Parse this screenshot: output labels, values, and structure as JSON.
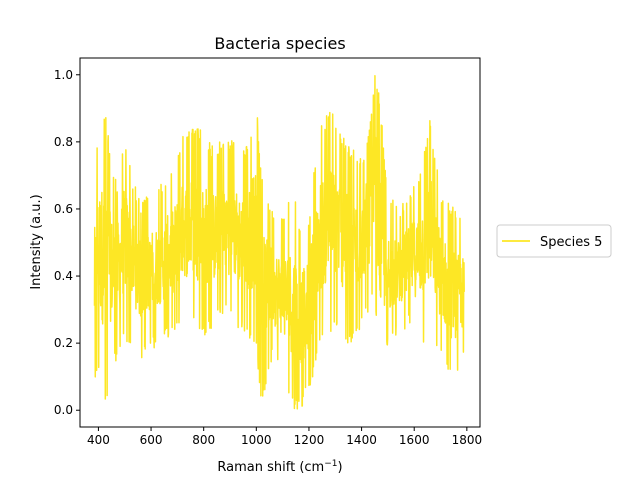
{
  "chart_data": {
    "type": "line",
    "title": "Bacteria species",
    "xlabel": "Raman shift (cm",
    "xlabel_sup": "−1",
    "xlabel_close": ")",
    "ylabel": "Intensity (a.u.)",
    "xlim": [
      330,
      1850
    ],
    "ylim": [
      -0.05,
      1.05
    ],
    "xticks": [
      400,
      600,
      800,
      1000,
      1200,
      1400,
      1600,
      1800
    ],
    "yticks": [
      0.0,
      0.2,
      0.4,
      0.6,
      0.8,
      1.0
    ],
    "xtick_labels": [
      "400",
      "600",
      "800",
      "1000",
      "1200",
      "1400",
      "1600",
      "1800"
    ],
    "ytick_labels": [
      "0.0",
      "0.2",
      "0.4",
      "0.6",
      "0.8",
      "1.0"
    ],
    "grid": false,
    "legend_placement": "outside-right",
    "series": [
      {
        "name": "Species 5",
        "color": "#fde725",
        "envelope": {
          "x": [
            385,
            400,
            415,
            430,
            445,
            470,
            500,
            530,
            560,
            600,
            640,
            680,
            720,
            760,
            800,
            840,
            880,
            920,
            960,
            1000,
            1020,
            1060,
            1100,
            1140,
            1170,
            1200,
            1240,
            1280,
            1310,
            1340,
            1370,
            1400,
            1430,
            1450,
            1470,
            1500,
            1540,
            1580,
            1620,
            1660,
            1700,
            1740,
            1770,
            1790
          ],
          "high": [
            0.7,
            0.85,
            0.88,
            0.9,
            0.75,
            0.68,
            0.82,
            0.7,
            0.62,
            0.65,
            0.68,
            0.72,
            0.82,
            0.85,
            0.83,
            0.78,
            0.82,
            0.8,
            0.78,
            0.92,
            0.7,
            0.6,
            0.58,
            0.65,
            0.55,
            0.58,
            0.85,
            0.9,
            0.86,
            0.8,
            0.78,
            0.75,
            0.85,
            1.0,
            0.93,
            0.65,
            0.6,
            0.65,
            0.72,
            0.88,
            0.65,
            0.62,
            0.6,
            0.55
          ],
          "low": [
            0.05,
            0.12,
            0.05,
            0.0,
            0.1,
            0.15,
            0.2,
            0.2,
            0.15,
            0.18,
            0.2,
            0.22,
            0.25,
            0.25,
            0.22,
            0.25,
            0.28,
            0.25,
            0.22,
            0.18,
            0.02,
            0.15,
            0.1,
            0.0,
            0.0,
            0.05,
            0.18,
            0.22,
            0.25,
            0.18,
            0.2,
            0.25,
            0.3,
            0.35,
            0.08,
            0.18,
            0.22,
            0.25,
            0.2,
            0.2,
            0.15,
            0.08,
            0.08,
            0.16
          ]
        }
      }
    ]
  }
}
